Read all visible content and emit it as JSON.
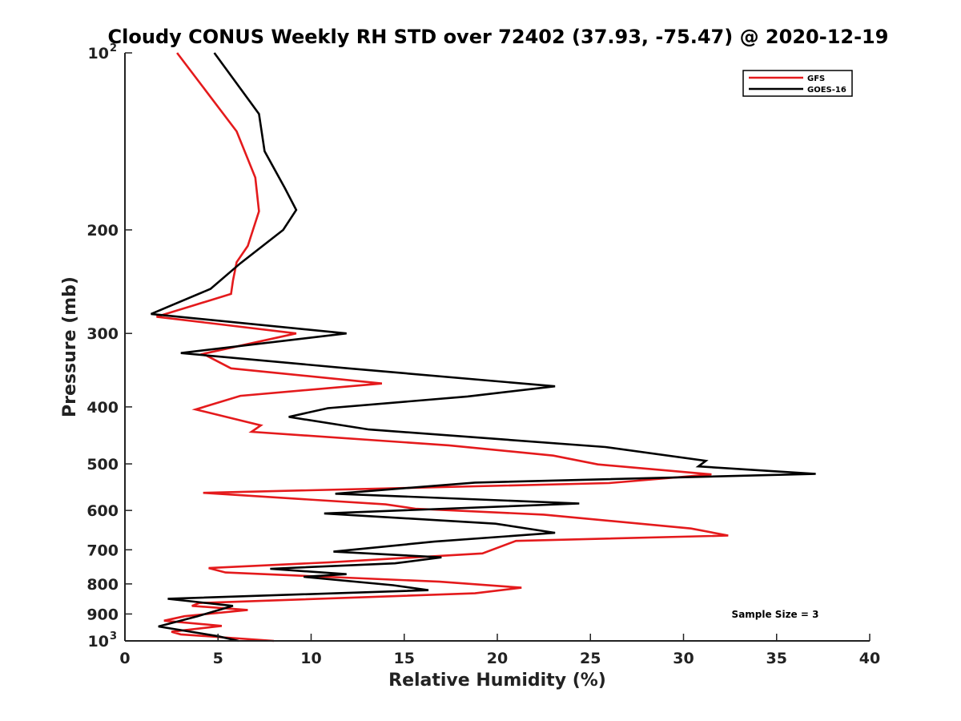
{
  "chart_data": {
    "type": "line",
    "title": "Cloudy CONUS Weekly RH STD over 72402 (37.93, -75.47) @ 2020-12-19",
    "xlabel": "Relative Humidity (%)",
    "ylabel": "Pressure (mb)",
    "xlim": [
      0,
      40
    ],
    "ylim": [
      100,
      1000
    ],
    "y_scale": "log",
    "y_reversed": true,
    "x_ticks": [
      0,
      5,
      10,
      15,
      20,
      25,
      30,
      35,
      40
    ],
    "y_ticks": [
      {
        "value": 100,
        "base": "10",
        "exp": "2"
      },
      {
        "value": 200,
        "label": "200"
      },
      {
        "value": 300,
        "label": "300"
      },
      {
        "value": 400,
        "label": "400"
      },
      {
        "value": 500,
        "label": "500"
      },
      {
        "value": 600,
        "label": "600"
      },
      {
        "value": 700,
        "label": "700"
      },
      {
        "value": 800,
        "label": "800"
      },
      {
        "value": 900,
        "label": "900"
      },
      {
        "value": 1000,
        "base": "10",
        "exp": "3"
      }
    ],
    "grid": false,
    "legend_position": "top-right",
    "annotation": "Sample Size = 3",
    "series": [
      {
        "name": "GFS",
        "color": "#e41a1c",
        "points": [
          [
            2.8,
            100
          ],
          [
            6.0,
            136
          ],
          [
            7.0,
            163
          ],
          [
            7.2,
            186
          ],
          [
            6.6,
            213
          ],
          [
            6.0,
            227
          ],
          [
            5.8,
            244
          ],
          [
            5.7,
            257
          ],
          [
            1.7,
            281
          ],
          [
            9.2,
            300
          ],
          [
            4.2,
            325
          ],
          [
            5.7,
            344
          ],
          [
            13.8,
            365
          ],
          [
            6.2,
            383
          ],
          [
            3.8,
            404
          ],
          [
            7.3,
            430
          ],
          [
            6.8,
            441
          ],
          [
            17.4,
            465
          ],
          [
            23.0,
            484
          ],
          [
            25.4,
            501
          ],
          [
            31.5,
            521
          ],
          [
            26.0,
            539
          ],
          [
            4.2,
            560
          ],
          [
            14.0,
            586
          ],
          [
            15.6,
            596
          ],
          [
            22.5,
            610
          ],
          [
            30.4,
            644
          ],
          [
            32.4,
            662
          ],
          [
            21.0,
            676
          ],
          [
            19.2,
            710
          ],
          [
            11.0,
            735
          ],
          [
            4.5,
            752
          ],
          [
            5.4,
            765
          ],
          [
            16.9,
            793
          ],
          [
            21.3,
            812
          ],
          [
            18.8,
            830
          ],
          [
            4.0,
            862
          ],
          [
            3.6,
            872
          ],
          [
            6.6,
            886
          ],
          [
            3.2,
            908
          ],
          [
            2.1,
            924
          ],
          [
            5.2,
            943
          ],
          [
            2.5,
            965
          ],
          [
            3.0,
            975
          ],
          [
            8.0,
            1000
          ]
        ]
      },
      {
        "name": "GOES-16",
        "color": "#000000",
        "points": [
          [
            4.8,
            100
          ],
          [
            7.2,
            127
          ],
          [
            7.5,
            147
          ],
          [
            8.6,
            170
          ],
          [
            9.2,
            185
          ],
          [
            8.5,
            200
          ],
          [
            6.2,
            228
          ],
          [
            4.6,
            252
          ],
          [
            1.4,
            278
          ],
          [
            11.9,
            300
          ],
          [
            3.0,
            324
          ],
          [
            12.0,
            344
          ],
          [
            23.1,
            369
          ],
          [
            18.4,
            384
          ],
          [
            10.9,
            402
          ],
          [
            8.8,
            416
          ],
          [
            13.1,
            437
          ],
          [
            25.8,
            468
          ],
          [
            31.2,
            494
          ],
          [
            30.8,
            505
          ],
          [
            37.1,
            520
          ],
          [
            18.8,
            538
          ],
          [
            11.3,
            562
          ],
          [
            24.4,
            584
          ],
          [
            10.7,
            607
          ],
          [
            19.9,
            632
          ],
          [
            23.1,
            655
          ],
          [
            16.6,
            678
          ],
          [
            11.2,
            705
          ],
          [
            17.0,
            721
          ],
          [
            14.5,
            738
          ],
          [
            7.8,
            754
          ],
          [
            11.9,
            770
          ],
          [
            9.6,
            778
          ],
          [
            14.4,
            804
          ],
          [
            16.3,
            820
          ],
          [
            2.3,
            848
          ],
          [
            5.8,
            872
          ],
          [
            3.9,
            908
          ],
          [
            1.8,
            945
          ],
          [
            5.0,
            982
          ],
          [
            6.1,
            1000
          ]
        ]
      }
    ]
  }
}
